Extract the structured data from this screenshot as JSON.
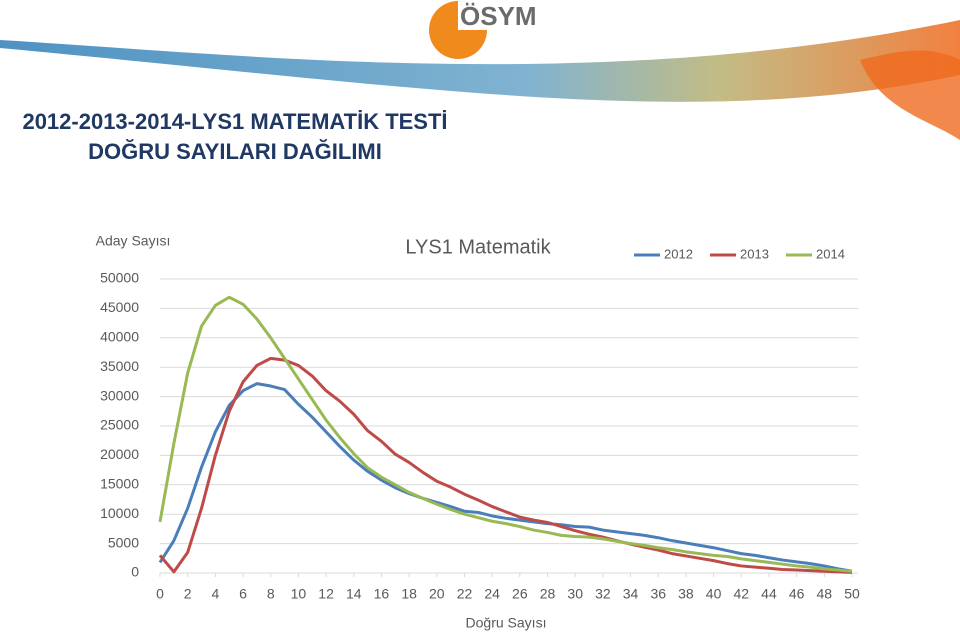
{
  "header": {
    "logo": "ÖSYM",
    "title_lines": [
      "2012-2013-2014-LYS1 MATEMATİK TESTİ",
      "DOĞRU SAYILARI DAĞILIMI"
    ]
  },
  "chart_data": {
    "type": "line",
    "title": "LYS1 Matematik",
    "y_label": "Aday Sayısı",
    "x_label": "Doğru Sayısı",
    "x": [
      0,
      1,
      2,
      3,
      4,
      5,
      6,
      7,
      8,
      9,
      10,
      11,
      12,
      13,
      14,
      15,
      16,
      17,
      18,
      19,
      20,
      21,
      22,
      23,
      24,
      25,
      26,
      27,
      28,
      29,
      30,
      31,
      32,
      33,
      34,
      35,
      36,
      37,
      38,
      39,
      40,
      41,
      42,
      43,
      44,
      45,
      46,
      47,
      48,
      49,
      50
    ],
    "series": [
      {
        "name": "2012",
        "color": "#4a7ebb",
        "values": [
          1800,
          5500,
          11000,
          18000,
          24000,
          28500,
          31000,
          32200,
          31800,
          31200,
          28700,
          26500,
          24000,
          21500,
          19200,
          17300,
          15800,
          14500,
          13500,
          12700,
          12000,
          11300,
          10500,
          10300,
          9700,
          9300,
          9000,
          8700,
          8400,
          8200,
          7900,
          7800,
          7300,
          7000,
          6700,
          6400,
          6000,
          5500,
          5100,
          4700,
          4300,
          3800,
          3300,
          3000,
          2600,
          2200,
          1900,
          1600,
          1200,
          700,
          300
        ]
      },
      {
        "name": "2013",
        "color": "#be4b48",
        "values": [
          3000,
          200,
          3500,
          11000,
          20000,
          27500,
          32500,
          35300,
          36500,
          36200,
          35300,
          33500,
          31000,
          29200,
          27000,
          24200,
          22400,
          20200,
          18800,
          17100,
          15600,
          14600,
          13400,
          12400,
          11300,
          10400,
          9500,
          9000,
          8600,
          7900,
          7200,
          6600,
          6100,
          5500,
          4900,
          4400,
          3900,
          3300,
          2900,
          2500,
          2100,
          1600,
          1200,
          1000,
          800,
          600,
          500,
          400,
          300,
          200,
          100
        ]
      },
      {
        "name": "2014",
        "color": "#98b954",
        "values": [
          8700,
          22000,
          34000,
          42000,
          45500,
          46900,
          45700,
          43200,
          40000,
          36500,
          33000,
          29500,
          26000,
          23000,
          20300,
          17900,
          16300,
          15000,
          13700,
          12700,
          11700,
          10800,
          10000,
          9400,
          8800,
          8400,
          7900,
          7300,
          6900,
          6400,
          6200,
          6100,
          5800,
          5400,
          5000,
          4700,
          4300,
          4000,
          3600,
          3300,
          3000,
          2800,
          2400,
          2100,
          1800,
          1500,
          1200,
          1000,
          700,
          500,
          300
        ]
      }
    ],
    "xlim": [
      0,
      50
    ],
    "xticks": [
      0,
      2,
      4,
      6,
      8,
      10,
      12,
      14,
      16,
      18,
      20,
      22,
      24,
      26,
      28,
      30,
      32,
      34,
      36,
      38,
      40,
      42,
      44,
      46,
      48,
      50
    ],
    "ylim": [
      0,
      50000
    ],
    "yticks": [
      0,
      5000,
      10000,
      15000,
      20000,
      25000,
      30000,
      35000,
      40000,
      45000,
      50000
    ],
    "grid": true,
    "legend": "top-right"
  }
}
